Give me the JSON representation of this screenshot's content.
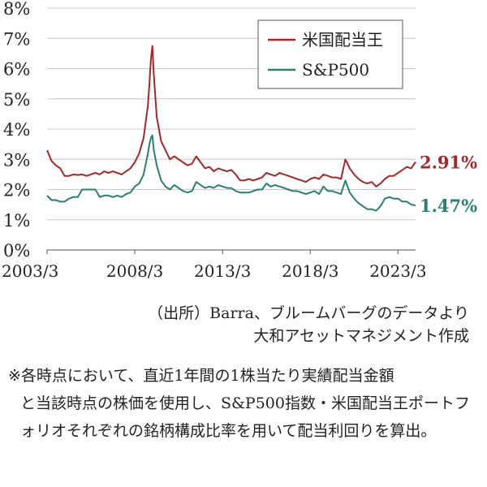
{
  "chart_data": {
    "type": "line",
    "title": "",
    "xlabel": "",
    "ylabel": "",
    "x_range": [
      "2003/3",
      "2024/3"
    ],
    "ylim": [
      0,
      8
    ],
    "y_ticks": [
      "0%",
      "1%",
      "2%",
      "3%",
      "4%",
      "5%",
      "6%",
      "7%",
      "8%"
    ],
    "x_ticks": [
      "2003/3",
      "2008/3",
      "2013/3",
      "2018/3",
      "2023/3"
    ],
    "grid": "horizontal",
    "legend_position": "top-right",
    "series": [
      {
        "name": "米国配当王",
        "color": "#a3282b",
        "end_label": "2.91%",
        "points": [
          [
            "2003/3",
            3.3
          ],
          [
            "2003/6",
            2.95
          ],
          [
            "2003/9",
            2.8
          ],
          [
            "2003/12",
            2.7
          ],
          [
            "2004/3",
            2.45
          ],
          [
            "2004/6",
            2.45
          ],
          [
            "2004/9",
            2.5
          ],
          [
            "2004/12",
            2.48
          ],
          [
            "2005/3",
            2.5
          ],
          [
            "2005/6",
            2.45
          ],
          [
            "2005/9",
            2.5
          ],
          [
            "2005/12",
            2.55
          ],
          [
            "2006/3",
            2.5
          ],
          [
            "2006/6",
            2.6
          ],
          [
            "2006/9",
            2.55
          ],
          [
            "2006/12",
            2.6
          ],
          [
            "2007/3",
            2.55
          ],
          [
            "2007/6",
            2.5
          ],
          [
            "2007/9",
            2.6
          ],
          [
            "2007/12",
            2.7
          ],
          [
            "2008/3",
            2.9
          ],
          [
            "2008/6",
            3.2
          ],
          [
            "2008/9",
            3.7
          ],
          [
            "2008/12",
            4.8
          ],
          [
            "2009/1",
            5.5
          ],
          [
            "2009/2",
            6.3
          ],
          [
            "2009/3",
            6.75
          ],
          [
            "2009/4",
            5.8
          ],
          [
            "2009/6",
            4.4
          ],
          [
            "2009/9",
            3.6
          ],
          [
            "2009/12",
            3.3
          ],
          [
            "2010/3",
            3.0
          ],
          [
            "2010/6",
            3.1
          ],
          [
            "2010/9",
            3.0
          ],
          [
            "2010/12",
            2.9
          ],
          [
            "2011/3",
            2.8
          ],
          [
            "2011/6",
            2.85
          ],
          [
            "2011/9",
            3.1
          ],
          [
            "2011/12",
            2.9
          ],
          [
            "2012/3",
            2.7
          ],
          [
            "2012/6",
            2.75
          ],
          [
            "2012/9",
            2.6
          ],
          [
            "2012/12",
            2.7
          ],
          [
            "2013/3",
            2.65
          ],
          [
            "2013/6",
            2.6
          ],
          [
            "2013/9",
            2.65
          ],
          [
            "2013/12",
            2.5
          ],
          [
            "2014/3",
            2.3
          ],
          [
            "2014/6",
            2.3
          ],
          [
            "2014/9",
            2.35
          ],
          [
            "2014/12",
            2.3
          ],
          [
            "2015/3",
            2.35
          ],
          [
            "2015/6",
            2.4
          ],
          [
            "2015/9",
            2.55
          ],
          [
            "2015/12",
            2.5
          ],
          [
            "2016/3",
            2.45
          ],
          [
            "2016/6",
            2.55
          ],
          [
            "2016/9",
            2.5
          ],
          [
            "2016/12",
            2.45
          ],
          [
            "2017/3",
            2.4
          ],
          [
            "2017/6",
            2.35
          ],
          [
            "2017/9",
            2.3
          ],
          [
            "2017/12",
            2.25
          ],
          [
            "2018/3",
            2.35
          ],
          [
            "2018/6",
            2.4
          ],
          [
            "2018/9",
            2.35
          ],
          [
            "2018/12",
            2.5
          ],
          [
            "2019/3",
            2.45
          ],
          [
            "2019/6",
            2.4
          ],
          [
            "2019/9",
            2.4
          ],
          [
            "2019/12",
            2.35
          ],
          [
            "2020/3",
            3.0
          ],
          [
            "2020/6",
            2.7
          ],
          [
            "2020/9",
            2.5
          ],
          [
            "2020/12",
            2.35
          ],
          [
            "2021/3",
            2.25
          ],
          [
            "2021/6",
            2.2
          ],
          [
            "2021/9",
            2.25
          ],
          [
            "2021/12",
            2.1
          ],
          [
            "2022/3",
            2.2
          ],
          [
            "2022/6",
            2.35
          ],
          [
            "2022/9",
            2.45
          ],
          [
            "2022/12",
            2.45
          ],
          [
            "2023/3",
            2.55
          ],
          [
            "2023/6",
            2.65
          ],
          [
            "2023/9",
            2.75
          ],
          [
            "2023/12",
            2.7
          ],
          [
            "2024/3",
            2.91
          ]
        ]
      },
      {
        "name": "S&P500",
        "color": "#2a7f72",
        "end_label": "1.47%",
        "points": [
          [
            "2003/3",
            1.8
          ],
          [
            "2003/6",
            1.65
          ],
          [
            "2003/9",
            1.65
          ],
          [
            "2003/12",
            1.6
          ],
          [
            "2004/3",
            1.6
          ],
          [
            "2004/6",
            1.7
          ],
          [
            "2004/9",
            1.75
          ],
          [
            "2004/12",
            1.75
          ],
          [
            "2005/3",
            2.0
          ],
          [
            "2005/6",
            2.0
          ],
          [
            "2005/9",
            2.0
          ],
          [
            "2005/12",
            2.0
          ],
          [
            "2006/3",
            1.75
          ],
          [
            "2006/6",
            1.8
          ],
          [
            "2006/9",
            1.8
          ],
          [
            "2006/12",
            1.75
          ],
          [
            "2007/3",
            1.8
          ],
          [
            "2007/6",
            1.75
          ],
          [
            "2007/9",
            1.85
          ],
          [
            "2007/12",
            1.9
          ],
          [
            "2008/3",
            2.1
          ],
          [
            "2008/6",
            2.2
          ],
          [
            "2008/9",
            2.5
          ],
          [
            "2008/12",
            3.2
          ],
          [
            "2009/1",
            3.5
          ],
          [
            "2009/2",
            3.7
          ],
          [
            "2009/3",
            3.8
          ],
          [
            "2009/4",
            3.3
          ],
          [
            "2009/6",
            2.8
          ],
          [
            "2009/9",
            2.3
          ],
          [
            "2009/12",
            2.1
          ],
          [
            "2010/3",
            2.0
          ],
          [
            "2010/6",
            2.15
          ],
          [
            "2010/9",
            2.05
          ],
          [
            "2010/12",
            1.95
          ],
          [
            "2011/3",
            1.9
          ],
          [
            "2011/6",
            1.95
          ],
          [
            "2011/9",
            2.25
          ],
          [
            "2011/12",
            2.15
          ],
          [
            "2012/3",
            2.05
          ],
          [
            "2012/6",
            2.1
          ],
          [
            "2012/9",
            2.05
          ],
          [
            "2012/12",
            2.15
          ],
          [
            "2013/3",
            2.1
          ],
          [
            "2013/6",
            2.05
          ],
          [
            "2013/9",
            2.05
          ],
          [
            "2013/12",
            1.95
          ],
          [
            "2014/3",
            1.9
          ],
          [
            "2014/6",
            1.9
          ],
          [
            "2014/9",
            1.9
          ],
          [
            "2014/12",
            1.95
          ],
          [
            "2015/3",
            2.0
          ],
          [
            "2015/6",
            2.0
          ],
          [
            "2015/9",
            2.2
          ],
          [
            "2015/12",
            2.1
          ],
          [
            "2016/3",
            2.15
          ],
          [
            "2016/6",
            2.1
          ],
          [
            "2016/9",
            2.05
          ],
          [
            "2016/12",
            2.0
          ],
          [
            "2017/3",
            1.95
          ],
          [
            "2017/6",
            1.95
          ],
          [
            "2017/9",
            1.9
          ],
          [
            "2017/12",
            1.85
          ],
          [
            "2018/3",
            1.9
          ],
          [
            "2018/6",
            1.95
          ],
          [
            "2018/9",
            1.85
          ],
          [
            "2018/12",
            2.1
          ],
          [
            "2019/3",
            1.95
          ],
          [
            "2019/6",
            1.95
          ],
          [
            "2019/9",
            1.9
          ],
          [
            "2019/12",
            1.85
          ],
          [
            "2020/3",
            2.3
          ],
          [
            "2020/6",
            1.9
          ],
          [
            "2020/9",
            1.7
          ],
          [
            "2020/12",
            1.55
          ],
          [
            "2021/3",
            1.45
          ],
          [
            "2021/6",
            1.35
          ],
          [
            "2021/9",
            1.35
          ],
          [
            "2021/12",
            1.3
          ],
          [
            "2022/3",
            1.45
          ],
          [
            "2022/6",
            1.7
          ],
          [
            "2022/9",
            1.75
          ],
          [
            "2022/12",
            1.7
          ],
          [
            "2023/3",
            1.7
          ],
          [
            "2023/6",
            1.6
          ],
          [
            "2023/9",
            1.6
          ],
          [
            "2023/12",
            1.5
          ],
          [
            "2024/3",
            1.47
          ]
        ]
      }
    ]
  },
  "source": {
    "line1": "（出所）Barra、ブルームバーグのデータより",
    "line2": "大和アセットマネジメント作成"
  },
  "note": {
    "mark": "※",
    "line1": "各時点において、直近1年間の1株当たり実績配当金額",
    "rest": "と当該時点の株価を使用し、S&P500指数・米国配当王ポートフォリオそれぞれの銘柄構成比率を用いて配当利回りを算出。"
  }
}
